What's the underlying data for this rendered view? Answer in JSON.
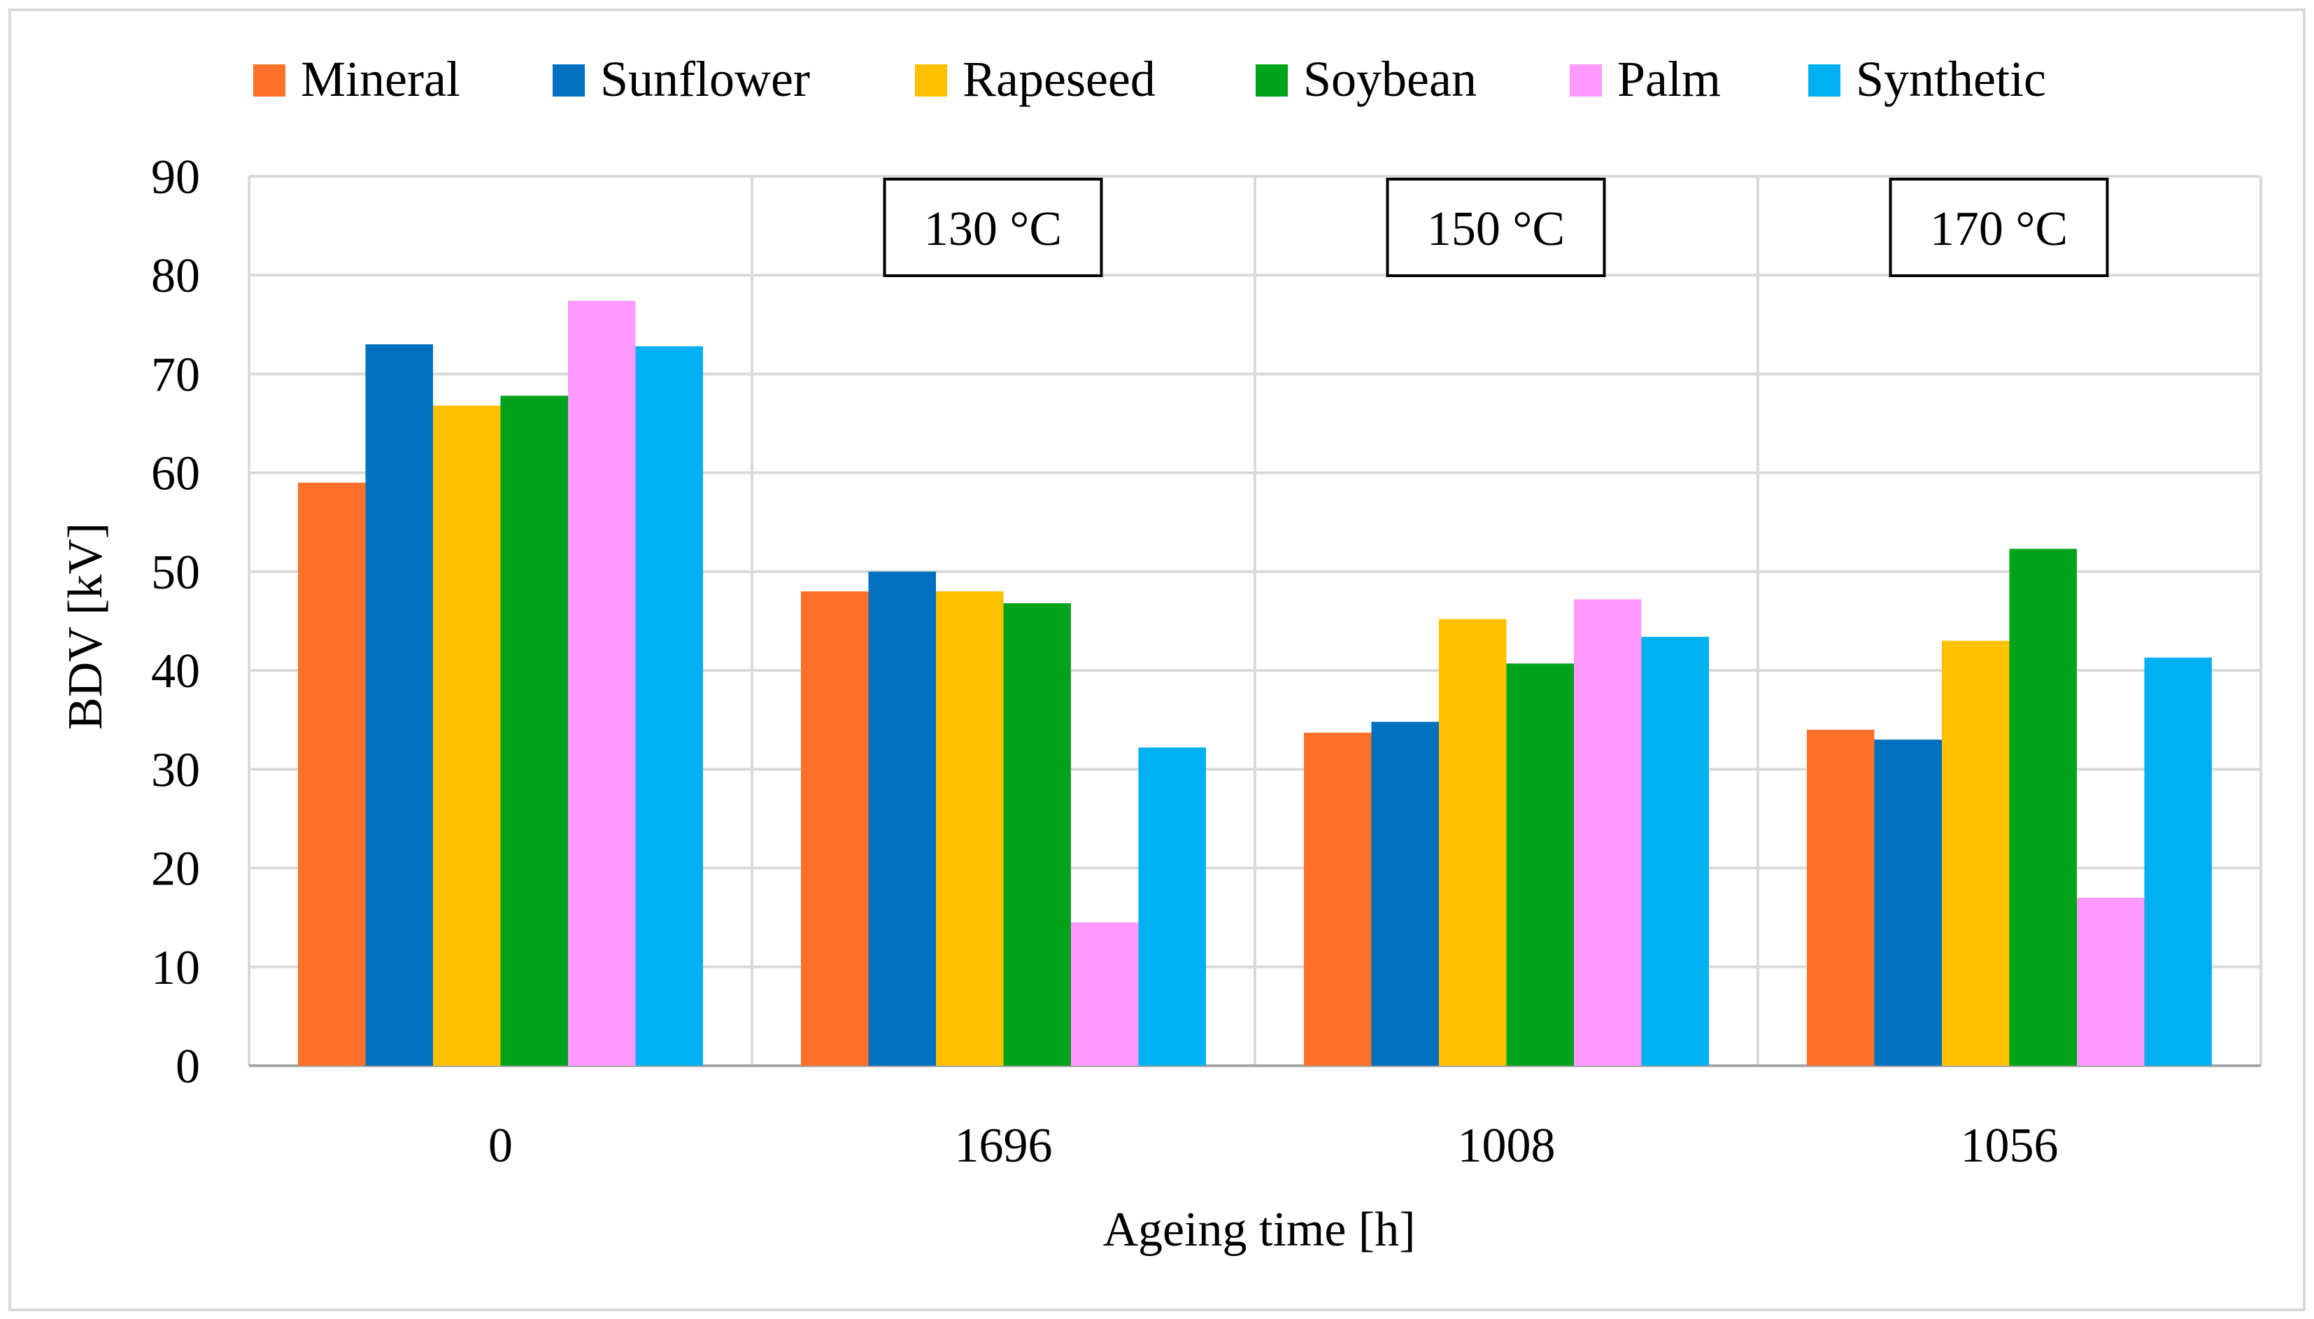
{
  "chart_data": {
    "type": "bar",
    "title": "",
    "xlabel": "Ageing time [h]",
    "ylabel": "BDV [kV]",
    "ylim": [
      0,
      90
    ],
    "ytick_step": 10,
    "yticks": [
      "0",
      "10",
      "20",
      "30",
      "40",
      "50",
      "60",
      "70",
      "80",
      "90"
    ],
    "categories": [
      "0",
      "1696",
      "1008",
      "1056"
    ],
    "group_annotations": [
      "",
      "130 °C",
      "150 °C",
      "170 °C"
    ],
    "legend_position": "top",
    "grid": true,
    "series": [
      {
        "name": "Mineral",
        "color": "#FF7029",
        "values": [
          59,
          48,
          33.7,
          34
        ]
      },
      {
        "name": "Sunflower",
        "color": "#0070C0",
        "values": [
          73,
          50,
          34.8,
          33
        ]
      },
      {
        "name": "Rapeseed",
        "color": "#FFC000",
        "values": [
          66.8,
          48,
          45.2,
          43
        ]
      },
      {
        "name": "Soybean",
        "color": "#00A31A",
        "values": [
          67.8,
          46.8,
          40.7,
          52.3
        ]
      },
      {
        "name": "Palm",
        "color": "#FF99FF",
        "values": [
          77.4,
          14.5,
          47.2,
          17
        ]
      },
      {
        "name": "Synthetic",
        "color": "#00B0F0",
        "values": [
          72.8,
          32.2,
          43.4,
          41.3
        ]
      }
    ]
  },
  "style": {
    "grid_color": "#d9d9d9",
    "axis_color": "#a6a6a6",
    "frame_color": "#d9d9d9"
  }
}
